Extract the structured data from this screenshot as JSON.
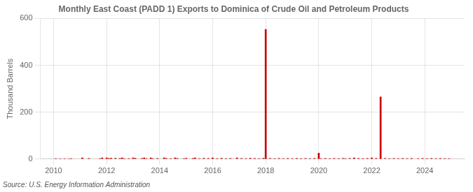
{
  "chart_data": {
    "type": "bar",
    "title": "Monthly East Coast (PADD 1) Exports to Dominica of Crude Oil and Petroleum Products",
    "ylabel": "Thousand Barrels",
    "annotations": [
      "Source: U.S. Energy Information Administration"
    ],
    "x": [
      2010.083,
      2010.25,
      2010.417,
      2010.583,
      2010.667,
      2011.083,
      2011.333,
      2011.75,
      2011.833,
      2012.0,
      2012.083,
      2012.167,
      2012.333,
      2012.5,
      2012.583,
      2012.667,
      2012.833,
      2013.0,
      2013.083,
      2013.333,
      2013.417,
      2013.5,
      2013.667,
      2013.75,
      2013.917,
      2014.167,
      2014.25,
      2014.417,
      2014.583,
      2014.667,
      2014.917,
      2015.0,
      2015.25,
      2015.333,
      2015.5,
      2015.667,
      2015.833,
      2016.0,
      2016.167,
      2016.333,
      2016.5,
      2016.667,
      2016.917,
      2017.083,
      2017.25,
      2017.417,
      2017.583,
      2017.75,
      2017.917,
      2018.0,
      2018.167,
      2018.333,
      2018.5,
      2018.667,
      2018.833,
      2019.0,
      2019.167,
      2019.333,
      2019.5,
      2019.667,
      2019.833,
      2020.0,
      2020.083,
      2020.25,
      2020.417,
      2020.583,
      2020.75,
      2020.917,
      2021.0,
      2021.167,
      2021.333,
      2021.5,
      2021.667,
      2021.833,
      2022.0,
      2022.167,
      2022.333,
      2022.5,
      2022.667,
      2022.833,
      2023.0,
      2023.167,
      2023.333,
      2023.5,
      2023.75,
      2023.917,
      2024.083,
      2024.25,
      2024.417,
      2024.583,
      2024.75,
      2024.917
    ],
    "values": [
      2,
      1,
      1,
      1,
      2,
      5,
      3,
      2,
      5,
      5,
      3,
      4,
      4,
      3,
      5,
      2,
      2,
      5,
      4,
      3,
      5,
      2,
      5,
      2,
      3,
      5,
      3,
      2,
      5,
      3,
      2,
      4,
      3,
      5,
      2,
      4,
      3,
      5,
      2,
      4,
      2,
      3,
      5,
      3,
      2,
      4,
      3,
      2,
      4,
      553,
      3,
      2,
      3,
      2,
      3,
      2,
      3,
      2,
      3,
      2,
      3,
      25,
      2,
      3,
      2,
      3,
      2,
      3,
      2,
      3,
      5,
      3,
      2,
      3,
      5,
      3,
      265,
      3,
      2,
      3,
      2,
      3,
      2,
      3,
      2,
      3,
      2,
      3,
      2,
      3,
      2,
      2
    ],
    "color": "#cc0000",
    "xlim": [
      2009.5,
      2025.5
    ],
    "xticks": [
      2010,
      2012,
      2014,
      2016,
      2018,
      2020,
      2022,
      2024
    ],
    "ylim": [
      0,
      600
    ],
    "yticks": [
      0,
      200,
      400,
      600
    ],
    "grid": true
  }
}
